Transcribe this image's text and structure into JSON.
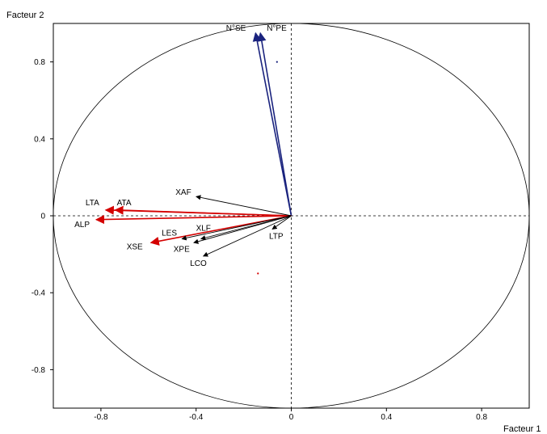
{
  "chart_data": {
    "type": "scatter",
    "xlabel": "Facteur 1",
    "ylabel": "Facteur 2",
    "xlim": [
      -1.0,
      1.0
    ],
    "ylim": [
      -1.0,
      1.0
    ],
    "xticks": [
      -0.8,
      -0.4,
      0,
      0.4,
      0.8
    ],
    "yticks": [
      0.8,
      0.4,
      0,
      -0.4,
      -0.8
    ],
    "xtick_labels": [
      "-0.8",
      "-0.4",
      "0",
      "0.4",
      "0.8"
    ],
    "ytick_labels": [
      "0.8",
      "0.4",
      "0",
      "-0.4",
      "-0.8"
    ],
    "unit_circle": true,
    "zero_lines": "dashed",
    "vectors": [
      {
        "label": "N°SE",
        "x": -0.15,
        "y": 0.95,
        "color": "#1a237e"
      },
      {
        "label": "N°PE",
        "x": -0.13,
        "y": 0.95,
        "color": "#1a237e"
      },
      {
        "label": "LTA",
        "x": -0.78,
        "y": 0.03,
        "color": "#d40000"
      },
      {
        "label": "ATA",
        "x": -0.74,
        "y": 0.03,
        "color": "#d40000"
      },
      {
        "label": "ALP",
        "x": -0.82,
        "y": -0.02,
        "color": "#d40000"
      },
      {
        "label": "XSE",
        "x": -0.59,
        "y": -0.14,
        "color": "#d40000"
      },
      {
        "label": "XAF",
        "x": -0.4,
        "y": 0.1,
        "color": "#000000"
      },
      {
        "label": "LES",
        "x": -0.46,
        "y": -0.12,
        "color": "#000000"
      },
      {
        "label": "XLF",
        "x": -0.38,
        "y": -0.12,
        "color": "#000000"
      },
      {
        "label": "XPE",
        "x": -0.41,
        "y": -0.14,
        "color": "#000000"
      },
      {
        "label": "LCO",
        "x": -0.37,
        "y": -0.21,
        "color": "#000000"
      },
      {
        "label": "LTP",
        "x": -0.08,
        "y": -0.07,
        "color": "#000000"
      }
    ],
    "points": [
      {
        "x": -0.06,
        "y": 0.8,
        "color": "#1a237e"
      },
      {
        "x": -0.14,
        "y": -0.3,
        "color": "#d40000"
      }
    ]
  }
}
